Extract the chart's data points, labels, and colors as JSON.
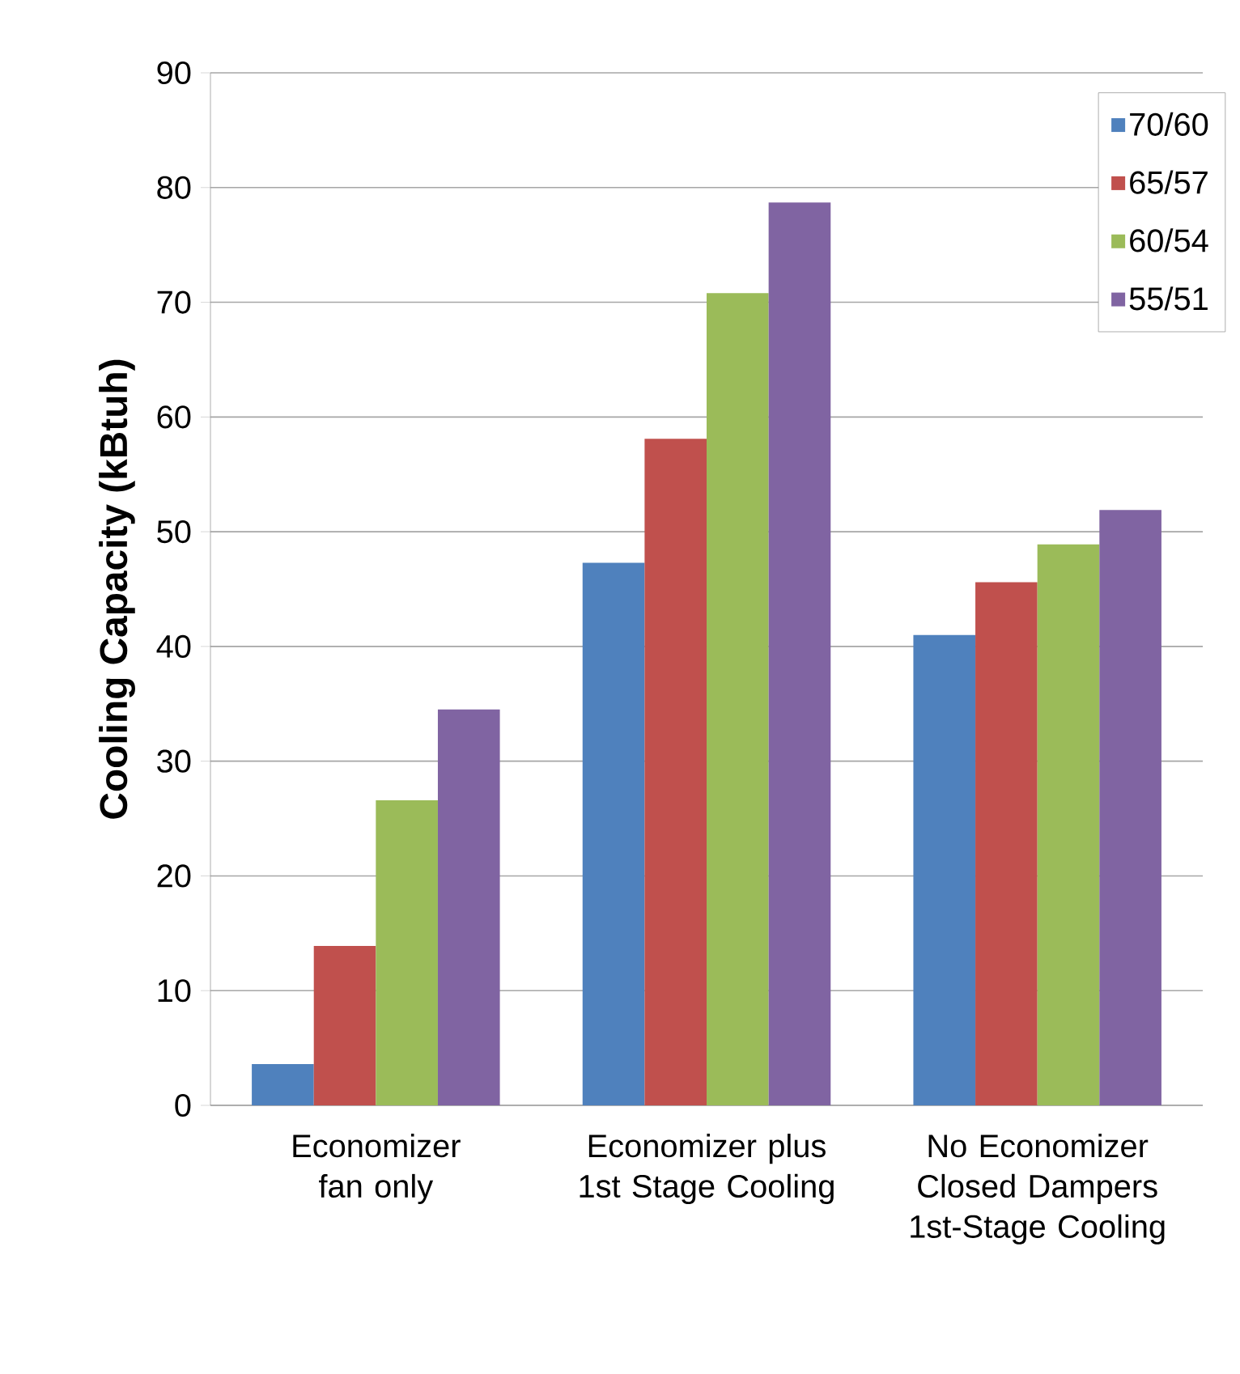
{
  "chart_data": {
    "type": "bar",
    "ylabel": "Cooling Capacity (kBtuh)",
    "categories": [
      "Economizer fan only",
      "Economizer plus 1st Stage Cooling",
      "No Economizer Closed Dampers 1st-Stage Cooling"
    ],
    "series": [
      {
        "name": "70/60",
        "color": "#4f81bd",
        "values": [
          3.6,
          47.3,
          41.0
        ]
      },
      {
        "name": "65/57",
        "color": "#c0504d",
        "values": [
          13.9,
          58.1,
          45.6
        ]
      },
      {
        "name": "60/54",
        "color": "#9bbb59",
        "values": [
          26.6,
          70.8,
          48.9
        ]
      },
      {
        "name": "55/51",
        "color": "#8064a2",
        "values": [
          34.5,
          78.7,
          51.9
        ]
      }
    ],
    "ylim": [
      0,
      90
    ],
    "yticks": [
      0,
      10,
      20,
      30,
      40,
      50,
      60,
      70,
      80,
      90
    ],
    "grid": "y",
    "legend": "top right"
  }
}
